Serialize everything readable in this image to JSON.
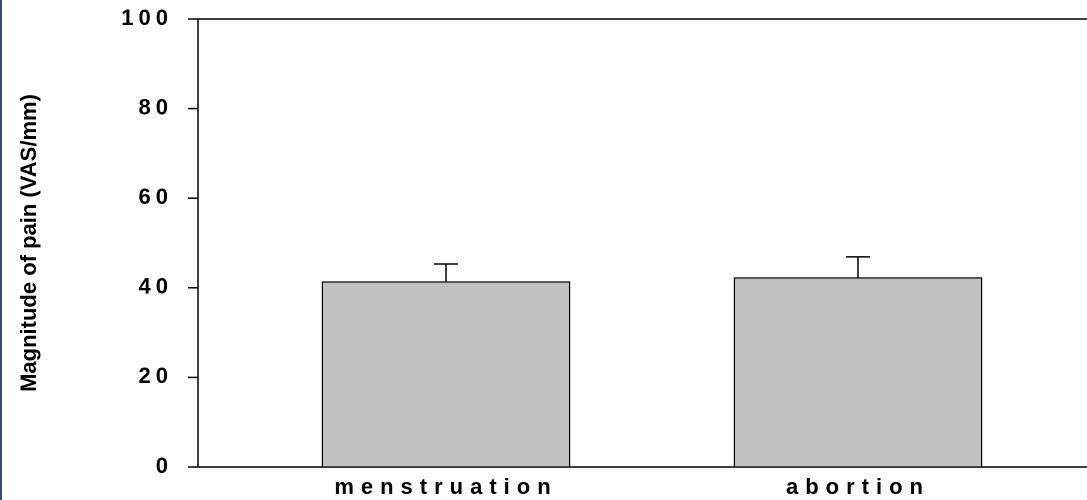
{
  "chart_data": {
    "type": "bar",
    "ylabel": "Magnitude of pain (VAS/mm)",
    "categories": [
      "menstruation",
      "abortion"
    ],
    "values": [
      41.3,
      42.2
    ],
    "errors": [
      4.0,
      4.7
    ],
    "color": "#c0c0c0",
    "ylim": [
      0,
      100
    ],
    "yticks": [
      0,
      20,
      40,
      60,
      80,
      100
    ]
  }
}
